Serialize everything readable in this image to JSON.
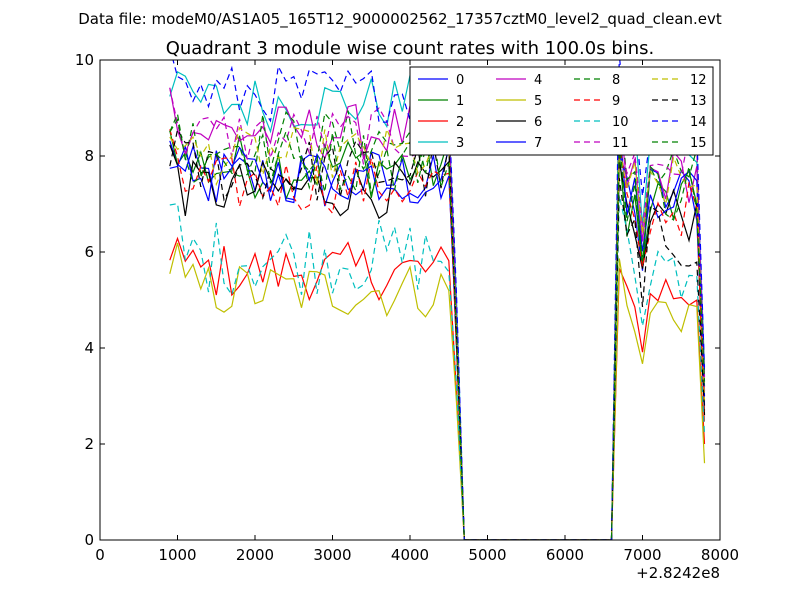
{
  "figure": {
    "supertitle": "Data file: modeM0/AS1A05_165T12_9000002562_17357cztM0_level2_quad_clean.evt"
  },
  "chart_data": {
    "type": "line",
    "title": "Quadrant 3 module wise count rates with 100.0s bins.",
    "xlabel": "",
    "ylabel": "",
    "x_offset_label": "+2.8242e8",
    "xlim": [
      0,
      8000
    ],
    "ylim": [
      0,
      10
    ],
    "x_ticks": [
      0,
      1000,
      2000,
      3000,
      4000,
      5000,
      6000,
      7000,
      8000
    ],
    "x_tick_labels": [
      "0",
      "1000",
      "2000",
      "3000",
      "4000",
      "5000",
      "6000",
      "7000",
      "8000"
    ],
    "y_ticks": [
      0,
      2,
      4,
      6,
      8,
      10
    ],
    "y_tick_labels": [
      "0",
      "2",
      "4",
      "6",
      "8",
      "10"
    ],
    "grid": false,
    "legend_position": "top-right",
    "legend_columns": 4,
    "segments": {
      "active1": [
        900,
        4500
      ],
      "drop": [
        4600,
        4700
      ],
      "zero": [
        4700,
        6600
      ],
      "active2": [
        6700,
        7700
      ],
      "end": 7800,
      "step": 100
    },
    "series": [
      {
        "name": "0",
        "color": "#0000ff",
        "dash": "solid",
        "level1": 7.5,
        "level2": 7.2,
        "var": 0.35,
        "end": 3.0
      },
      {
        "name": "1",
        "color": "#008000",
        "dash": "solid",
        "level1": 7.8,
        "level2": 7.0,
        "var": 0.35,
        "end": 3.2
      },
      {
        "name": "2",
        "color": "#ff0000",
        "dash": "solid",
        "level1": 5.6,
        "level2": 5.2,
        "var": 0.3,
        "end": 2.0
      },
      {
        "name": "3",
        "color": "#00bfbf",
        "dash": "solid",
        "level1": 9.1,
        "level2": 8.3,
        "var": 0.3,
        "end": 3.6
      },
      {
        "name": "4",
        "color": "#bf00bf",
        "dash": "solid",
        "level1": 8.5,
        "level2": 7.6,
        "var": 0.3,
        "end": 3.4
      },
      {
        "name": "5",
        "color": "#bfbf00",
        "dash": "solid",
        "level1": 5.2,
        "level2": 4.8,
        "var": 0.3,
        "end": 1.6
      },
      {
        "name": "6",
        "color": "#000000",
        "dash": "solid",
        "level1": 7.3,
        "level2": 6.8,
        "var": 0.3,
        "end": 2.6
      },
      {
        "name": "7",
        "color": "#0000ff",
        "dash": "solid",
        "level1": 7.6,
        "level2": 7.3,
        "var": 0.3,
        "end": 2.8
      },
      {
        "name": "8",
        "color": "#008000",
        "dash": "dashed",
        "level1": 8.3,
        "level2": 7.7,
        "var": 0.35,
        "end": 3.0
      },
      {
        "name": "9",
        "color": "#ff0000",
        "dash": "dashed",
        "level1": 7.4,
        "level2": 6.9,
        "var": 0.3,
        "end": 2.4
      },
      {
        "name": "10",
        "color": "#00bfbf",
        "dash": "dashed",
        "level1": 5.9,
        "level2": 5.8,
        "var": 0.4,
        "end": 2.2
      },
      {
        "name": "11",
        "color": "#bf00bf",
        "dash": "dashed",
        "level1": 8.4,
        "level2": 7.9,
        "var": 0.3,
        "end": 3.1
      },
      {
        "name": "12",
        "color": "#bfbf00",
        "dash": "dashed",
        "level1": 8.0,
        "level2": 7.4,
        "var": 0.3,
        "end": 2.9
      },
      {
        "name": "13",
        "color": "#000000",
        "dash": "dashed",
        "level1": 7.7,
        "level2": 6.3,
        "var": 0.35,
        "end": 2.7
      },
      {
        "name": "14",
        "color": "#0000ff",
        "dash": "dashed",
        "level1": 9.3,
        "level2": 8.8,
        "var": 0.3,
        "end": 3.5
      },
      {
        "name": "15",
        "color": "#008000",
        "dash": "dashed",
        "level1": 7.9,
        "level2": 7.3,
        "var": 0.35,
        "end": 3.3
      }
    ]
  }
}
